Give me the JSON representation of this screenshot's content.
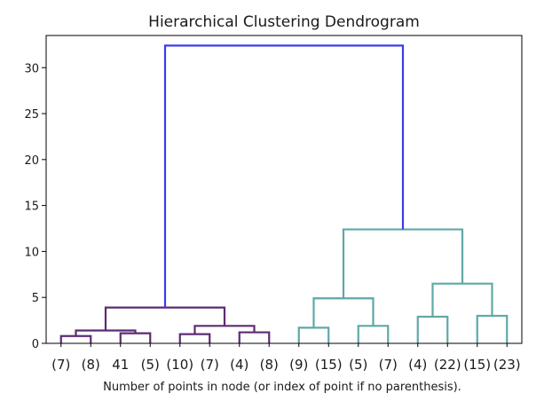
{
  "chart_data": {
    "type": "dendrogram",
    "title": "Hierarchical Clustering Dendrogram",
    "xlabel": "Number of points in node (or index of point if no parenthesis).",
    "ylabel": "",
    "ylim": [
      0,
      33.5
    ],
    "yticks": [
      0,
      5,
      10,
      15,
      20,
      25,
      30
    ],
    "grid": false,
    "leaves": [
      "(7)",
      "(8)",
      "41",
      "(5)",
      "(10)",
      "(7)",
      "(4)",
      "(8)",
      "(9)",
      "(15)",
      "(5)",
      "(7)",
      "(4)",
      "(22)",
      "(15)",
      "(23)"
    ],
    "colors": {
      "left_cluster": "#5c2b73",
      "right_cluster": "#5fa8a6",
      "root": "#3b3bf0"
    },
    "merges": [
      {
        "left": "L0",
        "right": "L1",
        "height": 0.8,
        "color": "left_cluster"
      },
      {
        "left": "L2",
        "right": "L3",
        "height": 1.1,
        "color": "left_cluster"
      },
      {
        "left": "M0",
        "right": "M1",
        "height": 1.4,
        "color": "left_cluster"
      },
      {
        "left": "L4",
        "right": "L5",
        "height": 1.0,
        "color": "left_cluster"
      },
      {
        "left": "L6",
        "right": "L7",
        "height": 1.2,
        "color": "left_cluster"
      },
      {
        "left": "M3",
        "right": "M4",
        "height": 1.9,
        "color": "left_cluster"
      },
      {
        "left": "M2",
        "right": "M5",
        "height": 3.9,
        "color": "left_cluster"
      },
      {
        "left": "L8",
        "right": "L9",
        "height": 1.7,
        "color": "right_cluster"
      },
      {
        "left": "L10",
        "right": "L11",
        "height": 1.9,
        "color": "right_cluster"
      },
      {
        "left": "M7",
        "right": "M8",
        "height": 4.9,
        "color": "right_cluster"
      },
      {
        "left": "L12",
        "right": "L13",
        "height": 2.9,
        "color": "right_cluster"
      },
      {
        "left": "L14",
        "right": "L15",
        "height": 3.0,
        "color": "right_cluster"
      },
      {
        "left": "M10",
        "right": "M11",
        "height": 6.5,
        "color": "right_cluster"
      },
      {
        "left": "M9",
        "right": "M12",
        "height": 12.4,
        "color": "right_cluster"
      },
      {
        "left": "M6",
        "right": "M13",
        "height": 32.4,
        "color": "root"
      }
    ]
  }
}
